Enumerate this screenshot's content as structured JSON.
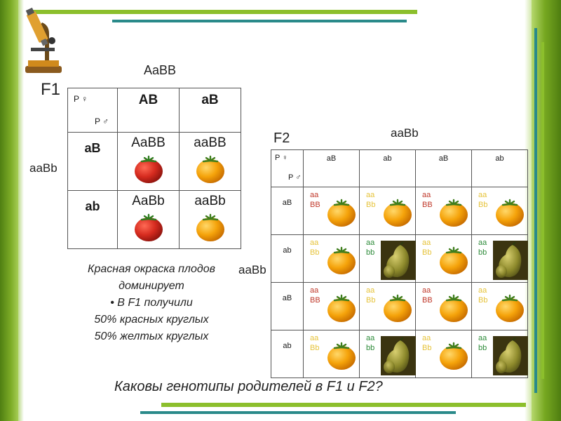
{
  "f1": {
    "label": "F1",
    "top_genotype": "AaBB",
    "left_genotype": "aaBb",
    "corner_female": "P ♀",
    "corner_male": "P ♂",
    "columns": [
      "AB",
      "aB"
    ],
    "rows": [
      {
        "header": "aB",
        "cells": [
          {
            "genotype": "AaBB",
            "fruit": "red"
          },
          {
            "genotype": "aaBB",
            "fruit": "yellow"
          }
        ]
      },
      {
        "header": "ab",
        "cells": [
          {
            "genotype": "AaBb",
            "fruit": "red"
          },
          {
            "genotype": "aaBb",
            "fruit": "yellow"
          }
        ]
      }
    ]
  },
  "f2": {
    "label": "F2",
    "top_genotype": "aaBb",
    "left_genotype": "aaBb",
    "corner_female": "P ♀",
    "corner_male": "P ♂",
    "columns": [
      "aB",
      "ab",
      "aB",
      "ab"
    ],
    "rows": [
      {
        "header": "aB",
        "cells": [
          {
            "line1": "aa",
            "line2": "BB",
            "color": "red",
            "fruit": "round"
          },
          {
            "line1": "aa",
            "line2": "Bb",
            "color": "yellow",
            "fruit": "round"
          },
          {
            "line1": "aa",
            "line2": "BB",
            "color": "red",
            "fruit": "round"
          },
          {
            "line1": "aa",
            "line2": "Bb",
            "color": "yellow",
            "fruit": "round"
          }
        ]
      },
      {
        "header": "ab",
        "cells": [
          {
            "line1": "aa",
            "line2": "Bb",
            "color": "yellow",
            "fruit": "round"
          },
          {
            "line1": "aa",
            "line2": "bb",
            "color": "green",
            "fruit": "pear"
          },
          {
            "line1": "aa",
            "line2": "Bb",
            "color": "yellow",
            "fruit": "round"
          },
          {
            "line1": "aa",
            "line2": "bb",
            "color": "green",
            "fruit": "pear"
          }
        ]
      },
      {
        "header": "aB",
        "cells": [
          {
            "line1": "aa",
            "line2": "BB",
            "color": "red",
            "fruit": "round"
          },
          {
            "line1": "aa",
            "line2": "Bb",
            "color": "yellow",
            "fruit": "round"
          },
          {
            "line1": "aa",
            "line2": "BB",
            "color": "red",
            "fruit": "round"
          },
          {
            "line1": "aa",
            "line2": "Bb",
            "color": "yellow",
            "fruit": "round"
          }
        ]
      },
      {
        "header": "ab",
        "cells": [
          {
            "line1": "aa",
            "line2": "Bb",
            "color": "yellow",
            "fruit": "round"
          },
          {
            "line1": "aa",
            "line2": "bb",
            "color": "green",
            "fruit": "pear"
          },
          {
            "line1": "aa",
            "line2": "Bb",
            "color": "yellow",
            "fruit": "round"
          },
          {
            "line1": "aa",
            "line2": "bb",
            "color": "green",
            "fruit": "pear"
          }
        ]
      }
    ]
  },
  "note": {
    "line1": "Красная окраска плодов",
    "line2": "доминирует",
    "line3": "• В F1 получили",
    "line4": "50% красных круглых",
    "line5": "50% желтых круглых"
  },
  "question": "Каковы генотипы родителей в F1 и  F2?",
  "colors": {
    "frame_green": "#7dac27",
    "frame_teal": "#2a8a8a",
    "tomato_red": "#d62b1f",
    "tomato_yellow": "#f5a30a",
    "pear_green": "#8e8a2c"
  },
  "icons": {
    "microscope": "microscope-icon",
    "red_fruit": "red-tomato-icon",
    "yellow_fruit": "yellow-tomato-icon",
    "pear_fruit": "pear-tomato-icon"
  }
}
